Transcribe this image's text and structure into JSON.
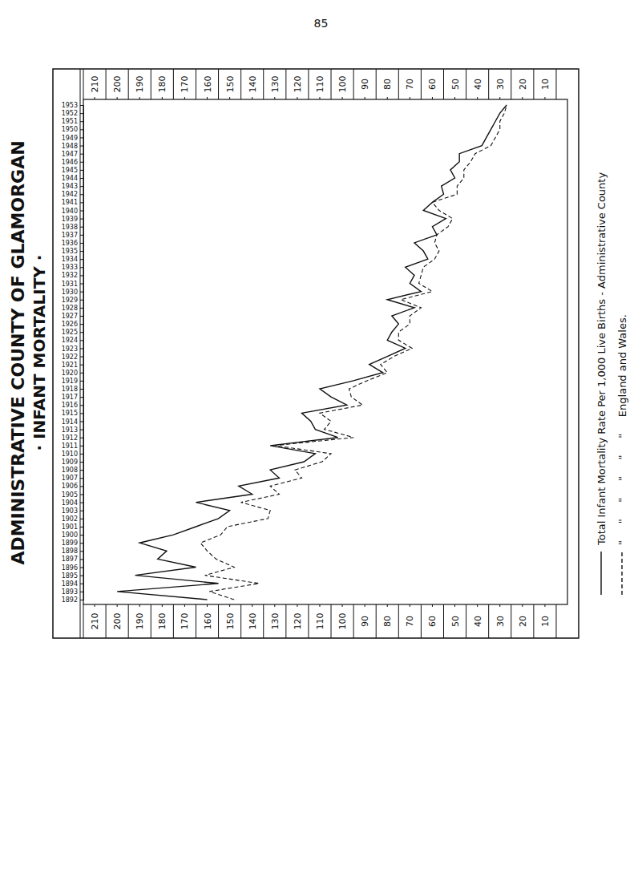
{
  "page_number": "85",
  "chart_data": {
    "type": "line",
    "title": "ADMINISTRATIVE COUNTY OF GLAMORGAN",
    "subtitle": "· INFANT MORTALITY ·",
    "x": [
      1892,
      1893,
      1894,
      1895,
      1896,
      1897,
      1898,
      1899,
      1900,
      1901,
      1902,
      1903,
      1904,
      1905,
      1906,
      1907,
      1908,
      1909,
      1910,
      1911,
      1912,
      1913,
      1914,
      1915,
      1916,
      1917,
      1918,
      1919,
      1920,
      1921,
      1922,
      1923,
      1924,
      1925,
      1926,
      1927,
      1928,
      1929,
      1930,
      1931,
      1932,
      1933,
      1934,
      1935,
      1936,
      1937,
      1938,
      1939,
      1940,
      1941,
      1942,
      1943,
      1944,
      1945,
      1946,
      1947,
      1948,
      1949,
      1950,
      1951,
      1952,
      1953
    ],
    "xlim": [
      1892,
      1953
    ],
    "xticks": [
      1892,
      1893,
      1894,
      1895,
      1896,
      1897,
      1898,
      1899,
      1900,
      1901,
      1902,
      1903,
      1904,
      1905,
      1906,
      1907,
      1908,
      1909,
      1910,
      1911,
      1912,
      1913,
      1914,
      1915,
      1916,
      1917,
      1918,
      1919,
      1920,
      1921,
      1922,
      1923,
      1924,
      1925,
      1926,
      1927,
      1928,
      1929,
      1930,
      1931,
      1932,
      1933,
      1934,
      1935,
      1936,
      1937,
      1938,
      1939,
      1940,
      1941,
      1942,
      1943,
      1944,
      1945,
      1946,
      1947,
      1948,
      1949,
      1950,
      1951,
      1952,
      1953
    ],
    "ylim": [
      0,
      215
    ],
    "yticks": [
      10,
      20,
      30,
      40,
      50,
      60,
      70,
      80,
      90,
      100,
      110,
      120,
      130,
      140,
      150,
      160,
      170,
      180,
      190,
      200,
      210
    ],
    "grid": false,
    "series": [
      {
        "name": "Total Infant Mortality Rate Per 1,000 Live Births - Administrative County",
        "color": "#111111",
        "line_style": "solid",
        "values": [
          160,
          200,
          155,
          192,
          165,
          182,
          178,
          190,
          175,
          165,
          155,
          150,
          165,
          140,
          146,
          128,
          132,
          117,
          112,
          132,
          102,
          112,
          114,
          118,
          98,
          105,
          110,
          95,
          82,
          88,
          80,
          72,
          80,
          78,
          75,
          78,
          68,
          80,
          65,
          70,
          68,
          72,
          62,
          64,
          68,
          58,
          60,
          54,
          64,
          60,
          55,
          56,
          50,
          52,
          48,
          48,
          38,
          36,
          34,
          32,
          30,
          27
        ]
      },
      {
        "name": "\"     \"     \"     \"     \"     \"     England and Wales.",
        "color": "#111111",
        "line_style": "dashed",
        "values": [
          148,
          159,
          137,
          161,
          148,
          156,
          160,
          163,
          154,
          151,
          133,
          132,
          145,
          128,
          132,
          118,
          121,
          109,
          105,
          130,
          95,
          108,
          105,
          110,
          91,
          96,
          97,
          89,
          80,
          83,
          77,
          69,
          75,
          75,
          70,
          70,
          65,
          74,
          60,
          66,
          65,
          64,
          59,
          57,
          59,
          58,
          53,
          51,
          57,
          60,
          49,
          49,
          46,
          46,
          43,
          41,
          34,
          32,
          30,
          30,
          28,
          27
        ]
      }
    ]
  }
}
